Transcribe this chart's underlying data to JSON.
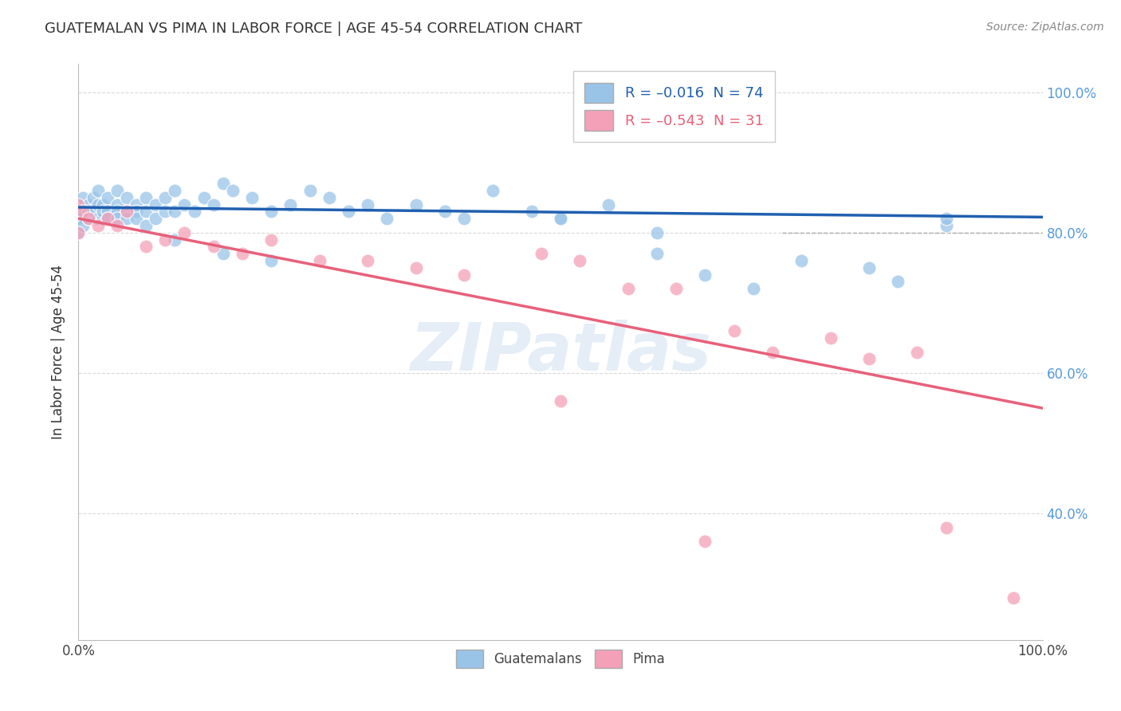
{
  "title": "GUATEMALAN VS PIMA IN LABOR FORCE | AGE 45-54 CORRELATION CHART",
  "source": "Source: ZipAtlas.com",
  "ylabel": "In Labor Force | Age 45-54",
  "xlim": [
    0.0,
    1.0
  ],
  "ylim": [
    0.22,
    1.04
  ],
  "yticks": [
    0.4,
    0.6,
    0.8,
    1.0
  ],
  "ytick_labels": [
    "40.0%",
    "60.0%",
    "80.0%",
    "100.0%"
  ],
  "xticks": [
    0.0,
    1.0
  ],
  "xtick_labels": [
    "0.0%",
    "100.0%"
  ],
  "blue_color": "#99c4e8",
  "pink_color": "#f4a0b8",
  "blue_line_color": "#2060b0",
  "pink_line_color": "#e8607a",
  "watermark": "ZIPatlas",
  "background_color": "#ffffff",
  "grid_color": "#d0d0d0",
  "legend_blue_label": "R = –0.016  N = 74",
  "legend_pink_label": "R = –0.543  N = 31",
  "blue_scatter_x": [
    0.0,
    0.0,
    0.0,
    0.0,
    0.005,
    0.005,
    0.005,
    0.01,
    0.01,
    0.01,
    0.015,
    0.015,
    0.02,
    0.02,
    0.02,
    0.025,
    0.025,
    0.025,
    0.03,
    0.03,
    0.03,
    0.04,
    0.04,
    0.04,
    0.04,
    0.05,
    0.05,
    0.05,
    0.06,
    0.06,
    0.06,
    0.07,
    0.07,
    0.07,
    0.08,
    0.08,
    0.09,
    0.09,
    0.1,
    0.1,
    0.11,
    0.12,
    0.13,
    0.14,
    0.15,
    0.16,
    0.18,
    0.2,
    0.22,
    0.24,
    0.26,
    0.28,
    0.3,
    0.32,
    0.35,
    0.38,
    0.4,
    0.43,
    0.47,
    0.5,
    0.55,
    0.6,
    0.65,
    0.7,
    0.75,
    0.82,
    0.85,
    0.9,
    0.1,
    0.15,
    0.2,
    0.5,
    0.6,
    0.9
  ],
  "blue_scatter_y": [
    0.84,
    0.82,
    0.8,
    0.83,
    0.85,
    0.83,
    0.81,
    0.84,
    0.83,
    0.82,
    0.85,
    0.83,
    0.84,
    0.82,
    0.86,
    0.84,
    0.82,
    0.83,
    0.85,
    0.83,
    0.82,
    0.86,
    0.84,
    0.83,
    0.82,
    0.85,
    0.83,
    0.82,
    0.84,
    0.83,
    0.82,
    0.85,
    0.83,
    0.81,
    0.84,
    0.82,
    0.85,
    0.83,
    0.86,
    0.83,
    0.84,
    0.83,
    0.85,
    0.84,
    0.87,
    0.86,
    0.85,
    0.83,
    0.84,
    0.86,
    0.85,
    0.83,
    0.84,
    0.82,
    0.84,
    0.83,
    0.82,
    0.86,
    0.83,
    0.82,
    0.84,
    0.77,
    0.74,
    0.72,
    0.76,
    0.75,
    0.73,
    0.81,
    0.79,
    0.77,
    0.76,
    0.82,
    0.8,
    0.82
  ],
  "pink_scatter_x": [
    0.0,
    0.0,
    0.005,
    0.01,
    0.02,
    0.03,
    0.04,
    0.05,
    0.07,
    0.09,
    0.11,
    0.14,
    0.17,
    0.2,
    0.25,
    0.3,
    0.35,
    0.4,
    0.48,
    0.52,
    0.57,
    0.62,
    0.68,
    0.72,
    0.78,
    0.82,
    0.87,
    0.9,
    0.5,
    0.65,
    0.97
  ],
  "pink_scatter_y": [
    0.84,
    0.8,
    0.83,
    0.82,
    0.81,
    0.82,
    0.81,
    0.83,
    0.78,
    0.79,
    0.8,
    0.78,
    0.77,
    0.79,
    0.76,
    0.76,
    0.75,
    0.74,
    0.77,
    0.76,
    0.72,
    0.72,
    0.66,
    0.63,
    0.65,
    0.62,
    0.63,
    0.38,
    0.56,
    0.36,
    0.28
  ],
  "blue_line_x0": 0.0,
  "blue_line_x1": 1.0,
  "blue_line_y0": 0.836,
  "blue_line_y1": 0.822,
  "pink_line_x0": 0.0,
  "pink_line_x1": 1.0,
  "pink_line_y0": 0.82,
  "pink_line_y1": 0.55,
  "hline_y": 0.8,
  "hline_x_solid_end": 0.73,
  "hline_x_dashed_start": 0.73
}
